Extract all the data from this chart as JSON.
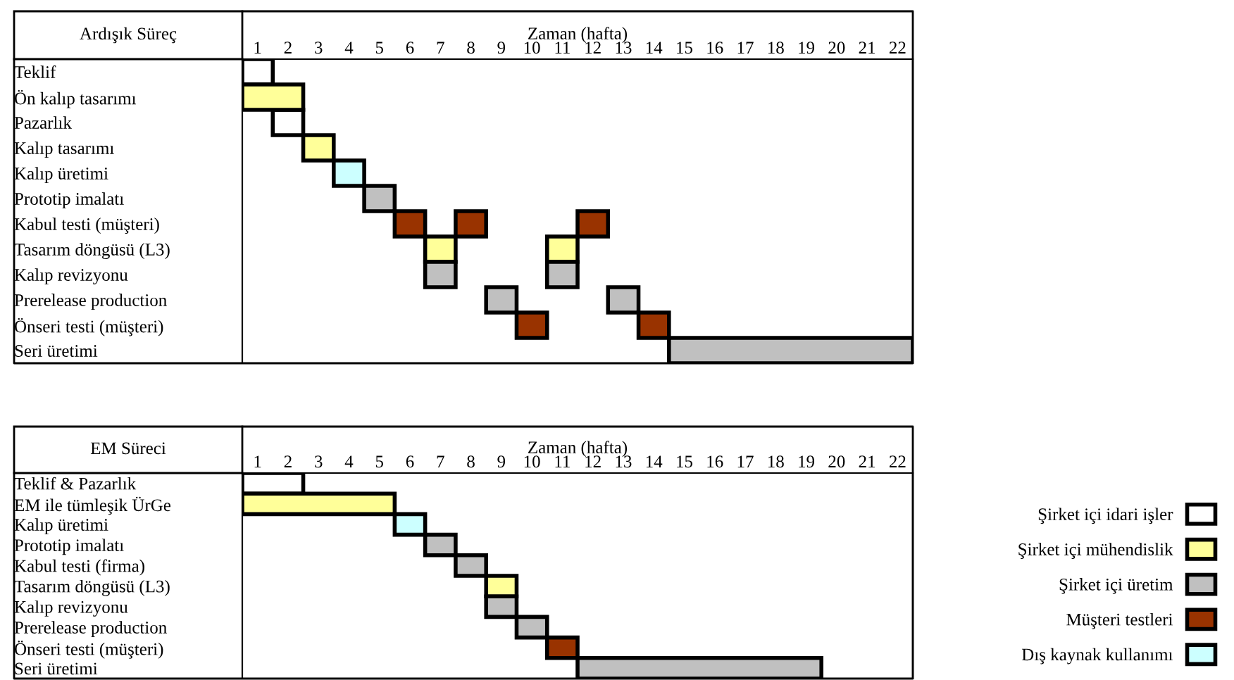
{
  "chart_data": [
    {
      "type": "bar",
      "orientation": "horizontal",
      "title": "Ardışık Süreç",
      "xlabel": "Zaman (hafta)",
      "categories": [
        "Teklif",
        "Ön kalıp tasarımı",
        "Pazarlık",
        "Kalıp tasarımı",
        "Kalıp üretimi",
        "Prototip imalatı",
        "Kabul testi (müşteri)",
        "Tasarım döngüsü (L3)",
        "Kalıp revizyonu",
        "Prerelease production",
        "Önseri testi (müşteri)",
        "Seri üretimi"
      ],
      "xlim": [
        0,
        22
      ],
      "xticks": [
        {
          "value": 0.5,
          "label": "1"
        },
        {
          "value": 1.5,
          "label": "2"
        },
        {
          "value": 2.5,
          "label": "3"
        },
        {
          "value": 3.5,
          "label": "4"
        },
        {
          "value": 4.5,
          "label": "5"
        },
        {
          "value": 5.5,
          "label": "6"
        },
        {
          "value": 6.5,
          "label": "7"
        },
        {
          "value": 7.5,
          "label": "8"
        },
        {
          "value": 8.5,
          "label": "9"
        },
        {
          "value": 9.5,
          "label": "10"
        },
        {
          "value": 10.5,
          "label": "11"
        },
        {
          "value": 11.5,
          "label": "12"
        },
        {
          "value": 12.5,
          "label": "13"
        },
        {
          "value": 13.5,
          "label": "14"
        },
        {
          "value": 14.5,
          "label": "15"
        },
        {
          "value": 15.5,
          "label": "16"
        },
        {
          "value": 16.5,
          "label": "17"
        },
        {
          "value": 17.5,
          "label": "18"
        },
        {
          "value": 18.5,
          "label": "19"
        },
        {
          "value": 19.5,
          "label": "20"
        },
        {
          "value": 20.5,
          "label": "21"
        },
        {
          "value": 21.5,
          "label": "22"
        }
      ],
      "grid": false,
      "legend": false,
      "series": [
        {
          "color": "#ffffff",
          "base": [
            0,
            null,
            1,
            null,
            null,
            null,
            null,
            null,
            null,
            null,
            null,
            null
          ],
          "values": [
            1,
            null,
            1,
            null,
            null,
            null,
            null,
            null,
            null,
            null,
            null,
            null
          ]
        },
        {
          "color": "#ffff99",
          "base": [
            null,
            0,
            null,
            2,
            null,
            null,
            null,
            6,
            null,
            null,
            null,
            null
          ],
          "values": [
            null,
            2,
            null,
            1,
            null,
            null,
            null,
            1,
            null,
            null,
            null,
            null
          ]
        },
        {
          "color": "#ffff99",
          "base": [
            null,
            null,
            null,
            null,
            null,
            null,
            null,
            10,
            null,
            null,
            null,
            null
          ],
          "values": [
            null,
            null,
            null,
            null,
            null,
            null,
            null,
            1,
            null,
            null,
            null,
            null
          ]
        },
        {
          "color": "#ccffff",
          "base": [
            null,
            null,
            null,
            null,
            3,
            null,
            null,
            null,
            null,
            null,
            null,
            null
          ],
          "values": [
            null,
            null,
            null,
            null,
            1,
            null,
            null,
            null,
            null,
            null,
            null,
            null
          ]
        },
        {
          "color": "#c0c0c0",
          "base": [
            null,
            null,
            null,
            null,
            null,
            4,
            null,
            null,
            6,
            8,
            null,
            14
          ],
          "values": [
            null,
            null,
            null,
            null,
            null,
            1,
            null,
            null,
            1,
            1,
            null,
            8
          ]
        },
        {
          "color": "#c0c0c0",
          "base": [
            null,
            null,
            null,
            null,
            null,
            null,
            null,
            null,
            10,
            12,
            null,
            null
          ],
          "values": [
            null,
            null,
            null,
            null,
            null,
            null,
            null,
            null,
            1,
            1,
            null,
            null
          ]
        },
        {
          "color": "#993300",
          "base": [
            null,
            null,
            null,
            null,
            null,
            null,
            5,
            null,
            null,
            null,
            9,
            null
          ],
          "values": [
            null,
            null,
            null,
            null,
            null,
            null,
            1,
            null,
            null,
            null,
            1,
            null
          ]
        },
        {
          "color": "#993300",
          "base": [
            null,
            null,
            null,
            null,
            null,
            null,
            7,
            null,
            null,
            null,
            13,
            null
          ],
          "values": [
            null,
            null,
            null,
            null,
            null,
            null,
            1,
            null,
            null,
            null,
            1,
            null
          ]
        },
        {
          "color": "#993300",
          "base": [
            null,
            null,
            null,
            null,
            null,
            null,
            11,
            null,
            null,
            null,
            null,
            null
          ],
          "values": [
            null,
            null,
            null,
            null,
            null,
            null,
            1,
            null,
            null,
            null,
            null,
            null
          ]
        }
      ]
    },
    {
      "type": "bar",
      "orientation": "horizontal",
      "title": "EM Süreci",
      "xlabel": "Zaman (hafta)",
      "categories": [
        "Teklif & Pazarlık",
        "EM ile tümleşik ÜrGe",
        "Kalıp üretimi",
        "Prototip imalatı",
        "Kabul testi (firma)",
        "Tasarım döngüsü (L3)",
        "Kalıp revizyonu",
        "Prerelease production",
        "Önseri testi (müşteri)",
        "Seri üretimi"
      ],
      "xlim": [
        0,
        22
      ],
      "xticks": [
        {
          "value": 0.5,
          "label": "1"
        },
        {
          "value": 1.5,
          "label": "2"
        },
        {
          "value": 2.5,
          "label": "3"
        },
        {
          "value": 3.5,
          "label": "4"
        },
        {
          "value": 4.5,
          "label": "5"
        },
        {
          "value": 5.5,
          "label": "6"
        },
        {
          "value": 6.5,
          "label": "7"
        },
        {
          "value": 7.5,
          "label": "8"
        },
        {
          "value": 8.5,
          "label": "9"
        },
        {
          "value": 9.5,
          "label": "10"
        },
        {
          "value": 10.5,
          "label": "11"
        },
        {
          "value": 11.5,
          "label": "12"
        },
        {
          "value": 12.5,
          "label": "13"
        },
        {
          "value": 13.5,
          "label": "14"
        },
        {
          "value": 14.5,
          "label": "15"
        },
        {
          "value": 15.5,
          "label": "16"
        },
        {
          "value": 16.5,
          "label": "17"
        },
        {
          "value": 17.5,
          "label": "18"
        },
        {
          "value": 18.5,
          "label": "19"
        },
        {
          "value": 19.5,
          "label": "20"
        },
        {
          "value": 20.5,
          "label": "21"
        },
        {
          "value": 21.5,
          "label": "22"
        }
      ],
      "grid": false,
      "legend": "right",
      "series": [
        {
          "name": "Şirket içi idari işler",
          "color": "#ffffff",
          "base": [
            0,
            null,
            null,
            null,
            null,
            null,
            null,
            null,
            null,
            null
          ],
          "values": [
            2,
            null,
            null,
            null,
            null,
            null,
            null,
            null,
            null,
            null
          ]
        },
        {
          "name": "Şirket içi mühendislik",
          "color": "#ffff99",
          "base": [
            null,
            0,
            null,
            null,
            null,
            8,
            null,
            null,
            null,
            null
          ],
          "values": [
            null,
            5,
            null,
            null,
            null,
            1,
            null,
            null,
            null,
            null
          ]
        },
        {
          "name": "Şirket içi üretim",
          "color": "#c0c0c0",
          "base": [
            null,
            null,
            null,
            6,
            7,
            null,
            8,
            9,
            null,
            11
          ],
          "values": [
            null,
            null,
            null,
            1,
            1,
            null,
            1,
            1,
            null,
            8
          ]
        },
        {
          "name": "Müşteri testleri",
          "color": "#993300",
          "base": [
            null,
            null,
            null,
            null,
            null,
            null,
            null,
            null,
            10,
            null
          ],
          "values": [
            null,
            null,
            null,
            null,
            null,
            null,
            null,
            null,
            1,
            null
          ]
        },
        {
          "name": "Dış kaynak kullanımı",
          "color": "#ccffff",
          "base": [
            null,
            null,
            5,
            null,
            null,
            null,
            null,
            null,
            null,
            null
          ],
          "values": [
            null,
            null,
            1,
            null,
            null,
            null,
            null,
            null,
            null,
            null
          ]
        }
      ]
    }
  ]
}
